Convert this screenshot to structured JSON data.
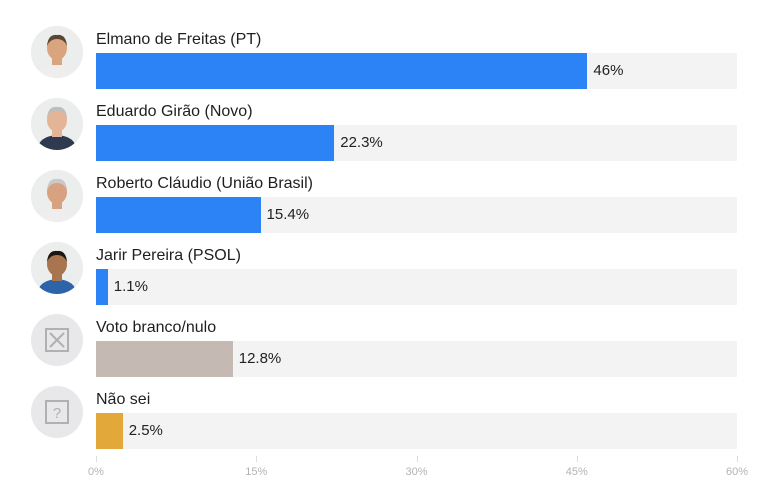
{
  "chart_data": {
    "type": "bar",
    "orientation": "horizontal",
    "categories": [
      "Elmano de Freitas (PT)",
      "Eduardo Girão (Novo)",
      "Roberto Cláudio (União Brasil)",
      "Jarir Pereira (PSOL)",
      "Voto branco/nulo",
      "Não sei"
    ],
    "values": [
      46,
      22.3,
      15.4,
      1.1,
      12.8,
      2.5
    ],
    "value_labels": [
      "46%",
      "22.3%",
      "15.4%",
      "1.1%",
      "12.8%",
      "2.5%"
    ],
    "bar_colors": [
      "#2b83f6",
      "#2b83f6",
      "#2b83f6",
      "#2b83f6",
      "#c4bab3",
      "#e2a83a"
    ],
    "track_color": "#f3f3f3",
    "icons": [
      "avatar-photo",
      "avatar-photo",
      "avatar-photo",
      "avatar-photo",
      "x-box-icon",
      "question-box-icon"
    ],
    "xlim": [
      0,
      60
    ],
    "xticks": [
      0,
      15,
      30,
      45,
      60
    ],
    "xtick_labels": [
      "0%",
      "15%",
      "30%",
      "45%",
      "60%"
    ],
    "grid": false,
    "legend": "none"
  }
}
